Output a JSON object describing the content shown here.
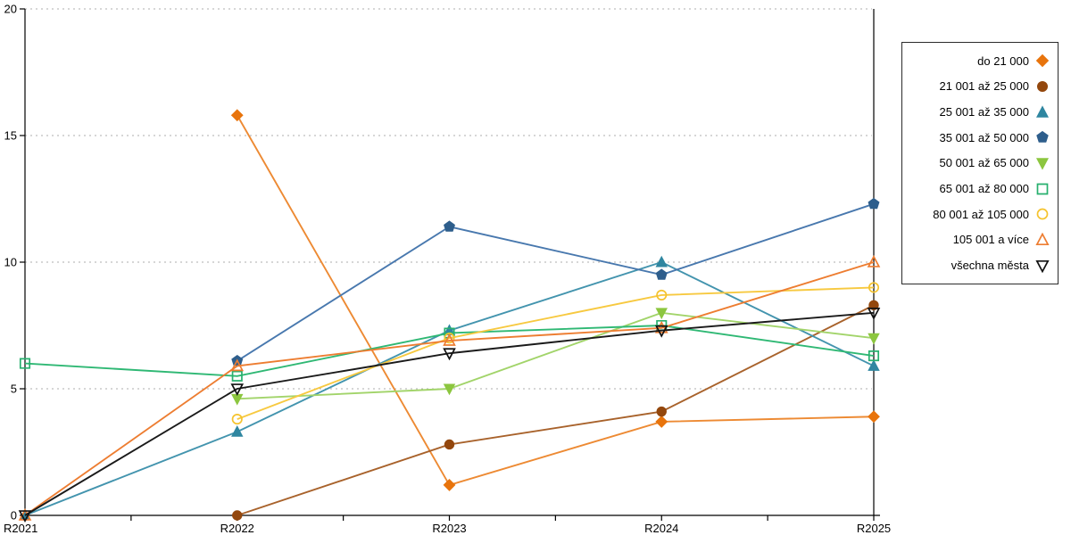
{
  "chart_data": {
    "type": "line",
    "title": "",
    "xlabel": "",
    "ylabel": "",
    "x_categories": [
      "R2021",
      "R2022",
      "R2023",
      "R2024",
      "R2025"
    ],
    "ylim": [
      0,
      20
    ],
    "yticks": [
      0,
      5,
      10,
      15,
      20
    ],
    "grid": "horizontal-dashed",
    "gridline_color": "#ADADAD",
    "axis_color": "#000000",
    "legend_position": "right-box",
    "series": [
      {
        "name": "do 21 000",
        "marker": "diamond",
        "fill": "solid",
        "color": "#E8740C",
        "line_color": "#ED8A33",
        "values": [
          null,
          15.8,
          1.2,
          3.7,
          3.9
        ]
      },
      {
        "name": "21 001 až 25 000",
        "marker": "circle",
        "fill": "solid",
        "color": "#93470D",
        "line_color": "#A8622B",
        "values": [
          null,
          0.0,
          2.8,
          4.1,
          8.3
        ]
      },
      {
        "name": "25 001 až 35 000",
        "marker": "triangle-up",
        "fill": "solid",
        "color": "#2F86A0",
        "line_color": "#4394AE",
        "values": [
          0.0,
          3.3,
          7.3,
          10.0,
          5.9
        ]
      },
      {
        "name": "35 001 až 50 000",
        "marker": "pentagon",
        "fill": "solid",
        "color": "#2E5E8C",
        "line_color": "#4878AE",
        "values": [
          null,
          6.1,
          11.4,
          9.5,
          12.3
        ]
      },
      {
        "name": "50 001 až 65 000",
        "marker": "triangle-down",
        "fill": "solid",
        "color": "#8CC63F",
        "line_color": "#A2D46A",
        "values": [
          null,
          4.6,
          5.0,
          8.0,
          7.0
        ]
      },
      {
        "name": "65 001 až 80 000",
        "marker": "square",
        "fill": "hollow",
        "color": "#27B06E",
        "line_color": "#2FB874",
        "values": [
          6.0,
          5.5,
          7.2,
          7.5,
          6.3
        ]
      },
      {
        "name": "80 001 až 105 000",
        "marker": "circle",
        "fill": "hollow",
        "color": "#F5C32E",
        "line_color": "#F7C940",
        "values": [
          null,
          3.8,
          7.0,
          8.7,
          9.0
        ]
      },
      {
        "name": "105 001 a více",
        "marker": "triangle-up",
        "fill": "hollow",
        "color": "#ED7D31",
        "line_color": "#ED7D31",
        "values": [
          0.0,
          5.9,
          6.9,
          7.4,
          10.0
        ]
      },
      {
        "name": "všechna města",
        "marker": "triangle-down",
        "fill": "hollow",
        "color": "#121212",
        "line_color": "#1A1A1A",
        "values": [
          0.0,
          5.0,
          6.4,
          7.3,
          8.0
        ]
      }
    ]
  }
}
